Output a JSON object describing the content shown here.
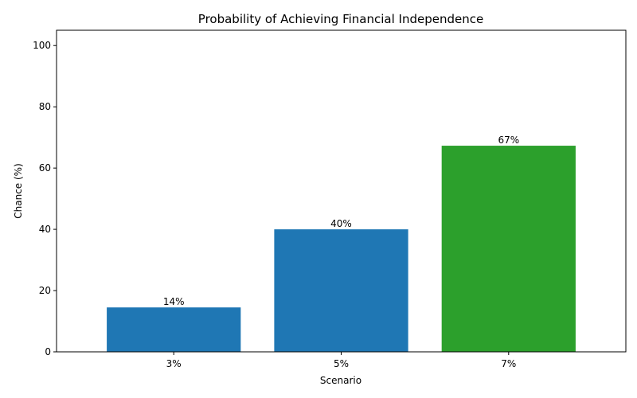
{
  "chart_data": {
    "type": "bar",
    "title": "Probability of Achieving Financial Independence",
    "xlabel": "Scenario",
    "ylabel": "Chance (%)",
    "categories": [
      "3%",
      "5%",
      "7%"
    ],
    "values": [
      14.5,
      40.0,
      67.3
    ],
    "data_labels": [
      "14%",
      "40%",
      "67%"
    ],
    "bar_colors": [
      "#1f77b4",
      "#1f77b4",
      "#2ca02c"
    ],
    "ylim": [
      0,
      105
    ],
    "yticks": [
      0,
      20,
      40,
      60,
      80,
      100
    ],
    "grid": false,
    "legend": "none"
  }
}
